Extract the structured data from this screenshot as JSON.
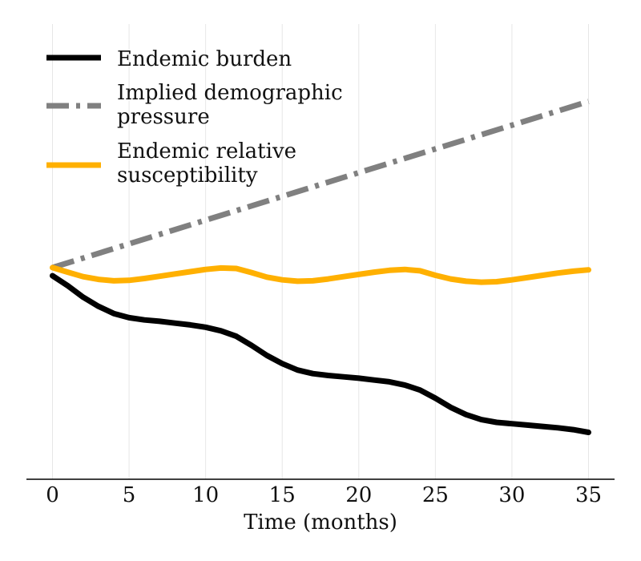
{
  "chart_data": {
    "type": "line",
    "title": "",
    "xlabel": "Time (months)",
    "ylabel": "",
    "xlim": [
      -1.7,
      36.7
    ],
    "ylim": [
      0,
      1
    ],
    "xticks": [
      0,
      5,
      10,
      15,
      20,
      25,
      30,
      35
    ],
    "xtick_labels": [
      "0",
      "5",
      "10",
      "15",
      "20",
      "25",
      "30",
      "35"
    ],
    "grid": "vertical",
    "legend_position": "top-left",
    "series": [
      {
        "name": "Endemic burden",
        "color": "#000000",
        "style": "solid",
        "x": [
          0,
          1,
          2,
          3,
          4,
          5,
          6,
          7,
          8,
          9,
          10,
          11,
          12,
          13,
          14,
          15,
          16,
          17,
          18,
          19,
          20,
          21,
          22,
          23,
          24,
          25,
          26,
          27,
          28,
          29,
          30,
          31,
          32,
          33,
          34,
          35
        ],
        "y": [
          0.447,
          0.425,
          0.4,
          0.38,
          0.364,
          0.355,
          0.35,
          0.347,
          0.343,
          0.339,
          0.334,
          0.326,
          0.314,
          0.294,
          0.272,
          0.254,
          0.24,
          0.232,
          0.228,
          0.225,
          0.222,
          0.218,
          0.214,
          0.207,
          0.196,
          0.178,
          0.158,
          0.142,
          0.131,
          0.125,
          0.122,
          0.119,
          0.116,
          0.113,
          0.109,
          0.103
        ]
      },
      {
        "name": "Implied demographic pressure",
        "color": "#808080",
        "style": "dashdot",
        "x": [
          0,
          35
        ],
        "y": [
          0.465,
          0.83
        ]
      },
      {
        "name": "Endemic relative susceptibility",
        "color": "#FFB000",
        "style": "solid",
        "x": [
          0,
          1,
          2,
          3,
          4,
          5,
          6,
          7,
          8,
          9,
          10,
          11,
          12,
          13,
          14,
          15,
          16,
          17,
          18,
          19,
          20,
          21,
          22,
          23,
          24,
          25,
          26,
          27,
          28,
          29,
          30,
          31,
          32,
          33,
          34,
          35
        ],
        "y": [
          0.465,
          0.455,
          0.445,
          0.439,
          0.436,
          0.437,
          0.441,
          0.446,
          0.451,
          0.456,
          0.461,
          0.464,
          0.463,
          0.454,
          0.444,
          0.438,
          0.435,
          0.436,
          0.44,
          0.445,
          0.45,
          0.455,
          0.459,
          0.461,
          0.458,
          0.448,
          0.44,
          0.435,
          0.433,
          0.434,
          0.438,
          0.443,
          0.448,
          0.453,
          0.457,
          0.46
        ]
      }
    ]
  }
}
